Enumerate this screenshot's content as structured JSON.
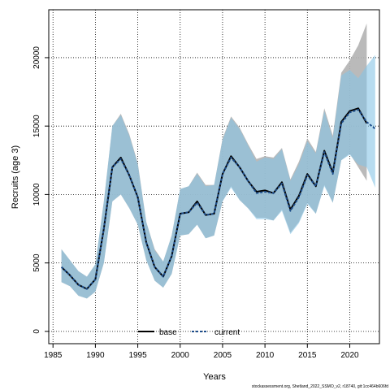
{
  "chart_data": {
    "type": "area",
    "xlabel": "Years",
    "ylabel": "Recruits (age 3)",
    "xlim": [
      1984.5,
      2023.5
    ],
    "ylim": [
      -900,
      23500
    ],
    "xticks": [
      1985,
      1990,
      1995,
      2000,
      2005,
      2010,
      2015,
      2020
    ],
    "yticks": [
      0,
      5000,
      10000,
      15000,
      20000
    ],
    "grid": true,
    "legend_position": "bottom-center",
    "caption": "stockassessment.org, Shetland_2022_SSMO_v2, r18740, git:1cc464b606fd",
    "x": [
      1986,
      1987,
      1988,
      1989,
      1990,
      1991,
      1992,
      1993,
      1994,
      1995,
      1996,
      1997,
      1998,
      1999,
      2000,
      2001,
      2002,
      2003,
      2004,
      2005,
      2006,
      2007,
      2008,
      2009,
      2010,
      2011,
      2012,
      2013,
      2014,
      2015,
      2016,
      2017,
      2018,
      2019,
      2020,
      2021,
      2022,
      2023
    ],
    "series": [
      {
        "name": "base",
        "color": "#000000",
        "band_color": "#b3b3b3",
        "values": [
          4700,
          4100,
          3400,
          3100,
          3800,
          7500,
          12000,
          12700,
          11400,
          9800,
          6500,
          4700,
          4000,
          5500,
          8600,
          8700,
          9500,
          8500,
          8600,
          11500,
          12800,
          12000,
          11000,
          10200,
          10300,
          10100,
          10900,
          8900,
          9900,
          11500,
          10600,
          13200,
          11600,
          15300,
          16100,
          16300,
          15200,
          null
        ],
        "lower": [
          3600,
          3300,
          2600,
          2400,
          2900,
          5000,
          9500,
          10000,
          9000,
          7800,
          5200,
          3700,
          3200,
          4200,
          7000,
          7100,
          7800,
          6800,
          7000,
          9500,
          10600,
          9600,
          9000,
          8300,
          8300,
          8100,
          8900,
          7200,
          8000,
          9400,
          8600,
          10700,
          9400,
          12500,
          13000,
          12000,
          11000,
          null
        ],
        "upper": [
          6000,
          5200,
          4400,
          4000,
          4900,
          9500,
          15000,
          15900,
          14400,
          12300,
          8000,
          6000,
          5100,
          7000,
          10400,
          10600,
          11600,
          10700,
          10700,
          14100,
          15700,
          14900,
          13700,
          12600,
          12800,
          12700,
          13400,
          11100,
          12400,
          14100,
          13100,
          16300,
          14300,
          18900,
          19800,
          20900,
          22500,
          null
        ]
      },
      {
        "name": "current",
        "color": "#1e4e8c",
        "band_color": "#87c5e6",
        "values": [
          4700,
          4100,
          3400,
          3100,
          3800,
          7500,
          12000,
          12600,
          11400,
          9800,
          6500,
          4700,
          4000,
          5500,
          8600,
          8700,
          9400,
          8500,
          8600,
          11500,
          12700,
          12000,
          11000,
          10100,
          10200,
          10100,
          10800,
          8800,
          9800,
          11400,
          10600,
          13100,
          11500,
          15200,
          16000,
          16200,
          15300,
          14800
        ],
        "lower": [
          3600,
          3300,
          2600,
          2400,
          2900,
          5000,
          9500,
          10000,
          9000,
          7800,
          5200,
          3700,
          3200,
          4200,
          7000,
          7100,
          7800,
          6800,
          7000,
          9500,
          10500,
          9600,
          9000,
          8200,
          8200,
          8100,
          8800,
          7100,
          7900,
          9300,
          8600,
          10600,
          9400,
          12500,
          12900,
          12200,
          12000,
          10500
        ],
        "upper": [
          6000,
          5200,
          4400,
          4000,
          4900,
          9500,
          15000,
          15800,
          14300,
          12200,
          8000,
          5900,
          5100,
          7000,
          10400,
          10600,
          11500,
          10600,
          10700,
          14000,
          15600,
          14800,
          13600,
          12400,
          12700,
          12600,
          13300,
          11000,
          12200,
          13900,
          13000,
          16100,
          14100,
          18700,
          19100,
          18500,
          19400,
          20200
        ]
      }
    ]
  }
}
